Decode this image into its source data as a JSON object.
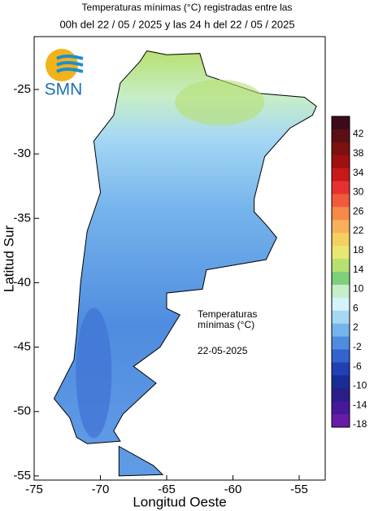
{
  "title_lines": [
    "Temperaturas mínimas (°C) registradas entre las",
    "00h del 22 / 05 / 2025 y las 24 h del 22 / 05 / 2025"
  ],
  "logo": "SMN",
  "x_label": "Longitud Oeste",
  "y_label": "Latitud Sur",
  "xticks": [
    -75,
    -70,
    -65,
    -60,
    -55
  ],
  "yticks": [
    -25,
    -30,
    -35,
    -40,
    -45,
    -50,
    -55
  ],
  "annotation": [
    "Temperaturas",
    "mínimas (°C)",
    "22-05-2025"
  ],
  "colorbar": {
    "labels": [
      42,
      38,
      34,
      30,
      26,
      22,
      18,
      14,
      10,
      6,
      2,
      -2,
      -6,
      -10,
      -14,
      -18
    ],
    "colors": [
      "#3d0a1c",
      "#5a0f16",
      "#7d1010",
      "#a01010",
      "#c81818",
      "#e83030",
      "#f05a3c",
      "#f58a4a",
      "#f8b05a",
      "#f4d060",
      "#e8e870",
      "#b8e070",
      "#7ed07a",
      "#c6eec8",
      "#d6f2fa",
      "#a6d8f4",
      "#76b4ec",
      "#4f8ce0",
      "#3363cf",
      "#2140b4",
      "#182c96",
      "#2a1e86",
      "#46189a",
      "#6a1aa8"
    ]
  }
}
